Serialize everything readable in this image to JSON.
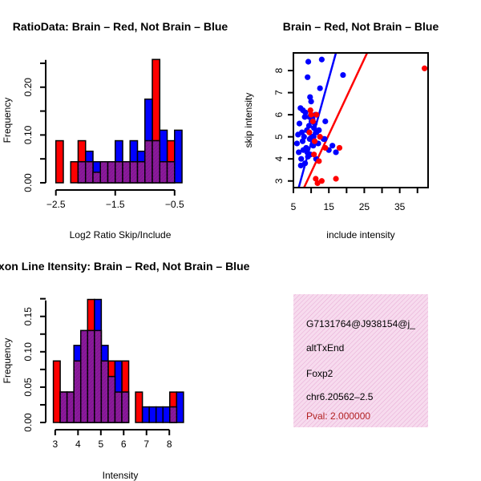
{
  "colors": {
    "red": "#ff0000",
    "blue": "#0000ff",
    "overlap": "#8b1a9b",
    "panel": "#f7dbee",
    "pval": "#b22222"
  },
  "chart_data": [
    {
      "id": "ratio",
      "type": "bar",
      "title": "RatioData: Brain – Red, Not Brain – Blue",
      "xlabel": "Log2 Ratio Skip/Include",
      "ylabel": "Frequency",
      "xlim": [
        -2.55,
        -0.2
      ],
      "ylim": [
        0,
        0.265
      ],
      "xticks": [
        -2.5,
        -1.5,
        -0.5
      ],
      "xtick_labels": [
        "−2.5",
        "−1.5",
        "−0.5"
      ],
      "yticks": [
        0,
        0.1,
        0.2
      ],
      "ytick_labels": [
        "0.00",
        "0.10",
        "0.20"
      ],
      "bin_edges": [
        -2.5,
        -2.375,
        -2.25,
        -2.125,
        -2.0,
        -1.875,
        -1.75,
        -1.625,
        -1.5,
        -1.375,
        -1.25,
        -1.125,
        -1.0,
        -0.875,
        -0.75,
        -0.625,
        -0.5,
        -0.375
      ],
      "series": [
        {
          "name": "Brain",
          "color": "red",
          "values": [
            0.088,
            0,
            0.044,
            0.088,
            0.044,
            0.022,
            0.044,
            0.044,
            0.044,
            0.044,
            0.044,
            0.044,
            0.088,
            0.258,
            0.044,
            0.088,
            0,
            0
          ]
        },
        {
          "name": "Not Brain",
          "color": "blue",
          "values": [
            0,
            0,
            0,
            0.044,
            0.066,
            0.044,
            0.044,
            0.044,
            0.088,
            0.044,
            0.088,
            0.066,
            0.175,
            0.088,
            0.11,
            0.044,
            0.11,
            0.11
          ]
        }
      ]
    },
    {
      "id": "scatter",
      "type": "scatter",
      "title": "Brain – Red, Not Brain – Blue",
      "xlabel": "include intensity",
      "ylabel": "skip intensity",
      "xlim": [
        5,
        43
      ],
      "ylim": [
        2.7,
        8.8
      ],
      "xticks": [
        5,
        15,
        25,
        35
      ],
      "xtick_labels": [
        "5",
        "15",
        "25",
        "35"
      ],
      "xticks_minor": [
        10,
        20,
        30,
        40
      ],
      "yticks": [
        3,
        4,
        5,
        6,
        7,
        8
      ],
      "ytick_labels": [
        "3",
        "4",
        "5",
        "6",
        "7",
        "8"
      ],
      "series": [
        {
          "name": "Not Brain",
          "color": "blue",
          "x": [
            6,
            6.3,
            6.5,
            6.7,
            7,
            7.2,
            7.4,
            7.6,
            7.8,
            8,
            8.2,
            8.4,
            8.6,
            8.8,
            9,
            9.2,
            9.4,
            9.6,
            9.8,
            10,
            10.2,
            10.4,
            10.6,
            10.8,
            11,
            11.2,
            11.5,
            12,
            12.5,
            13,
            13.5,
            14,
            15,
            16,
            17,
            19,
            7.1,
            8.3,
            9.1,
            10.1,
            11.4,
            12.2,
            7.7,
            8.9,
            9.7,
            10.7,
            13.8,
            9.5
          ],
          "y": [
            4.7,
            5.1,
            4.3,
            5.6,
            6.3,
            4.0,
            5.2,
            4.8,
            4.4,
            5.0,
            5.9,
            6.1,
            4.5,
            5.3,
            7.7,
            8.4,
            5.5,
            4.9,
            4.2,
            6.6,
            5.0,
            5.8,
            4.6,
            5.4,
            5.6,
            6.0,
            5.2,
            4.7,
            7.2,
            8.5,
            4.9,
            5.7,
            4.4,
            4.6,
            4.3,
            7.8,
            3.7,
            3.8,
            4.1,
            5.7,
            4.0,
            5.3,
            6.2,
            4.3,
            6.8,
            5.0,
            4.9,
            5.9
          ]
        },
        {
          "name": "Brain",
          "color": "red",
          "x": [
            9.5,
            10,
            10.5,
            11,
            11.3,
            11.8,
            12.5,
            13,
            14,
            17,
            18,
            42,
            9.8,
            10.8,
            12.2,
            11.5
          ],
          "y": [
            5.2,
            6.0,
            5.7,
            4.8,
            3.1,
            2.9,
            5.0,
            3.0,
            4.5,
            3.1,
            4.5,
            8.1,
            6.2,
            4.2,
            3.9,
            6.0
          ]
        }
      ],
      "fit_lines": [
        {
          "color": "blue",
          "x": [
            6.5,
            17.0
          ],
          "y": [
            2.7,
            8.8
          ]
        },
        {
          "color": "red",
          "x": [
            8.0,
            25.8
          ],
          "y": [
            2.7,
            8.8
          ]
        }
      ]
    },
    {
      "id": "intensity",
      "type": "bar",
      "title": "Exon Line Itensity: Brain – Red, Not Brain – Blue",
      "xlabel": "Intensity",
      "ylabel": "Frequency",
      "xlim": [
        2.9,
        8.8
      ],
      "ylim": [
        0,
        0.178
      ],
      "xticks": [
        3,
        4,
        5,
        6,
        7,
        8
      ],
      "xtick_labels": [
        "3",
        "4",
        "5",
        "6",
        "7",
        "8"
      ],
      "yticks": [
        0,
        0.05,
        0.1,
        0.15
      ],
      "ytick_labels": [
        "0.00",
        "0.05",
        "0.10",
        "0.15"
      ],
      "bin_edges": [
        2.92,
        3.22,
        3.52,
        3.82,
        4.12,
        4.42,
        4.72,
        5.02,
        5.32,
        5.62,
        5.92,
        6.22,
        6.52,
        6.82,
        7.12,
        7.42,
        7.72,
        8.02,
        8.32,
        8.62
      ],
      "series": [
        {
          "name": "Brain",
          "color": "red",
          "values": [
            0.087,
            0.043,
            0.043,
            0.087,
            0.13,
            0.174,
            0.13,
            0.087,
            0.087,
            0.043,
            0.087,
            0,
            0.043,
            0,
            0,
            0,
            0,
            0.043,
            0
          ]
        },
        {
          "name": "Not Brain",
          "color": "blue",
          "values": [
            0,
            0.043,
            0.043,
            0.109,
            0.13,
            0.13,
            0.174,
            0.109,
            0.065,
            0.087,
            0.043,
            0,
            0,
            0.022,
            0.022,
            0.022,
            0.022,
            0.022,
            0.043
          ]
        }
      ]
    }
  ],
  "info_panel": {
    "line1": "G7131764@J938154@j_",
    "line2": "altTxEnd",
    "line3": "Foxp2",
    "line4": "chr6.20562–2.5",
    "pval": "Pval: 2.000000"
  }
}
